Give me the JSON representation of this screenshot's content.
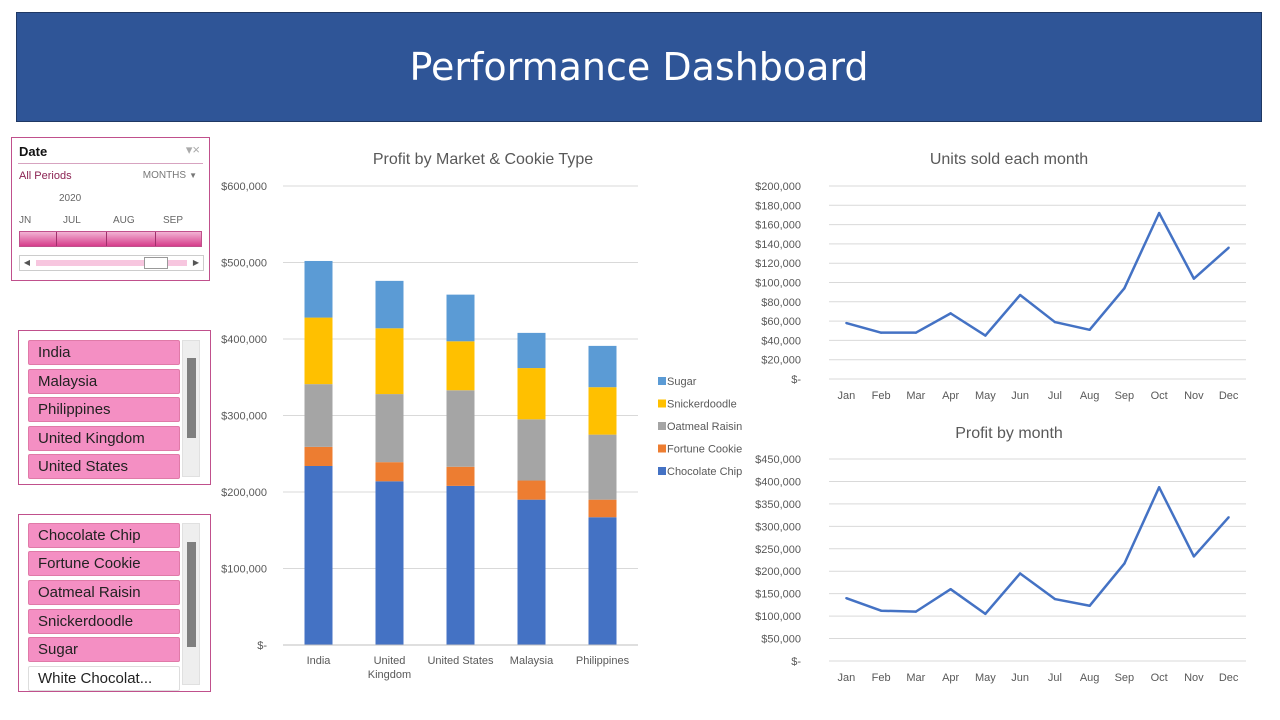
{
  "header": {
    "title": "Performance Dashboard"
  },
  "timeline": {
    "title": "Date",
    "periods_label": "All Periods",
    "level_label": "MONTHS",
    "year": "2020",
    "months": [
      "JN",
      "JUL",
      "AUG",
      "SEP"
    ]
  },
  "market_slicer": {
    "items": [
      {
        "label": "India"
      },
      {
        "label": "Malaysia"
      },
      {
        "label": "Philippines"
      },
      {
        "label": "United Kingdom"
      },
      {
        "label": "United States"
      }
    ]
  },
  "cookie_slicer": {
    "items": [
      {
        "label": "Chocolate Chip"
      },
      {
        "label": "Fortune Cookie"
      },
      {
        "label": "Oatmeal Raisin"
      },
      {
        "label": "Snickerdoodle"
      },
      {
        "label": "Sugar"
      },
      {
        "label": "White Chocolat..."
      }
    ]
  },
  "colors": {
    "chocolate_chip": "#4472c4",
    "fortune_cookie": "#ed7d31",
    "oatmeal_raisin": "#a5a5a5",
    "snickerdoodle": "#ffc000",
    "sugar": "#5b9bd5",
    "line": "#4472c4",
    "slicer_selected": "#f48fc3",
    "banner": "#2f5597"
  },
  "chart_data": [
    {
      "type": "bar",
      "stacked": true,
      "title": "Profit by Market & Cookie Type",
      "categories": [
        "India",
        "United Kingdom",
        "United States",
        "Malaysia",
        "Philippines"
      ],
      "series": [
        {
          "name": "Chocolate Chip",
          "values": [
            234000,
            214000,
            208000,
            190000,
            167000
          ]
        },
        {
          "name": "Fortune Cookie",
          "values": [
            25000,
            25000,
            25000,
            25000,
            23000
          ]
        },
        {
          "name": "Oatmeal Raisin",
          "values": [
            82000,
            89000,
            100000,
            80000,
            85000
          ]
        },
        {
          "name": "Snickerdoodle",
          "values": [
            87000,
            86000,
            64000,
            67000,
            62000
          ]
        },
        {
          "name": "Sugar",
          "values": [
            74000,
            62000,
            61000,
            46000,
            54000
          ]
        }
      ],
      "legend_order": [
        "Sugar",
        "Snickerdoodle",
        "Oatmeal Raisin",
        "Fortune Cookie",
        "Chocolate Chip"
      ],
      "ylim": [
        0,
        600000
      ],
      "yticks": [
        "$-",
        "$100,000",
        "$200,000",
        "$300,000",
        "$400,000",
        "$500,000",
        "$600,000"
      ],
      "legend": "right",
      "grid": true
    },
    {
      "type": "line",
      "title": "Units sold each month",
      "x": [
        "Jan",
        "Feb",
        "Mar",
        "Apr",
        "May",
        "Jun",
        "Jul",
        "Aug",
        "Sep",
        "Oct",
        "Nov",
        "Dec"
      ],
      "y": [
        58000,
        48000,
        48000,
        68000,
        45000,
        87000,
        59000,
        51000,
        94000,
        172000,
        104000,
        136000
      ],
      "ylim": [
        0,
        200000
      ],
      "yticks": [
        "$-",
        "$20,000",
        "$40,000",
        "$60,000",
        "$80,000",
        "$100,000",
        "$120,000",
        "$140,000",
        "$160,000",
        "$180,000",
        "$200,000"
      ],
      "grid": true
    },
    {
      "type": "line",
      "title": "Profit by month",
      "x": [
        "Jan",
        "Feb",
        "Mar",
        "Apr",
        "May",
        "Jun",
        "Jul",
        "Aug",
        "Sep",
        "Oct",
        "Nov",
        "Dec"
      ],
      "y": [
        140000,
        112000,
        110000,
        160000,
        105000,
        195000,
        138000,
        123000,
        217000,
        387000,
        233000,
        320000
      ],
      "ylim": [
        0,
        450000
      ],
      "yticks": [
        "$-",
        "$50,000",
        "$100,000",
        "$150,000",
        "$200,000",
        "$250,000",
        "$300,000",
        "$350,000",
        "$400,000",
        "$450,000"
      ],
      "grid": true
    }
  ]
}
